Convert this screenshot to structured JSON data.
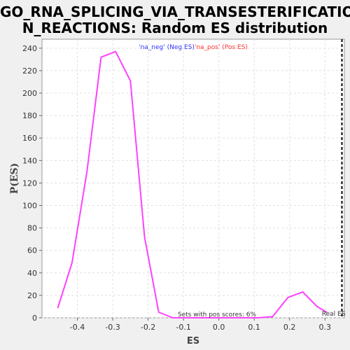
{
  "title": {
    "line1": "GO_RNA_SPLICING_VIA_TRANSESTERIFICATIO",
    "line2": "N_REACTIONS: Random ES distribution"
  },
  "chart_data": {
    "type": "line",
    "xlabel": "ES",
    "ylabel": "P(ES)",
    "xlim": [
      -0.5,
      0.355
    ],
    "ylim": [
      0,
      248
    ],
    "xticks": [
      -0.4,
      -0.3,
      -0.2,
      -0.1,
      0.0,
      0.1,
      0.2,
      0.3
    ],
    "xtick_labels": [
      "-0.4",
      "-0.3",
      "-0.2",
      "-0.1",
      "0.0",
      "0.1",
      "0.2",
      "0.3"
    ],
    "yticks": [
      0,
      20,
      40,
      60,
      80,
      100,
      120,
      140,
      160,
      180,
      200,
      220,
      240
    ],
    "grid": true,
    "series": [
      {
        "color": "#ff40ff",
        "x": [
          -0.455,
          -0.415,
          -0.373,
          -0.333,
          -0.292,
          -0.25,
          -0.21,
          -0.17,
          -0.13,
          -0.09,
          -0.05,
          -0.01,
          0.03,
          0.07,
          0.11,
          0.152,
          0.195,
          0.237,
          0.278,
          0.305
        ],
        "y": [
          9,
          49,
          130,
          232,
          237,
          211,
          72,
          5,
          0,
          0,
          0,
          0,
          0,
          0,
          0,
          1,
          18,
          23,
          10,
          5
        ]
      }
    ],
    "legend": {
      "neg_label": "'na_neg' (Neg ES)",
      "neg_color": "#3333ff",
      "pos_label": "'na_pos' (Pos ES)",
      "pos_color": "#ff3333"
    },
    "real_es": {
      "x": 0.348,
      "label": "Real ES"
    },
    "annotation": "Sets with pos scores: 6%"
  }
}
